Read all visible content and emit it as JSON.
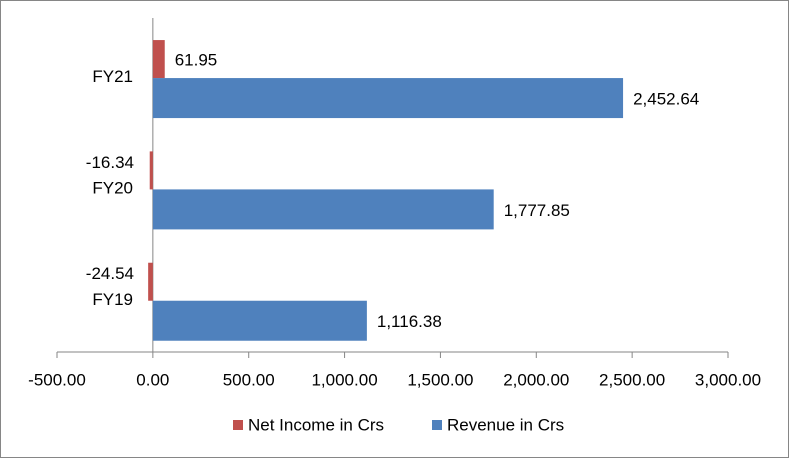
{
  "chart_data": {
    "type": "hbar",
    "categories": [
      "FY19",
      "FY20",
      "FY21"
    ],
    "series": [
      {
        "name": "Net Income in Crs",
        "color": "#c0504d",
        "values": [
          -24.54,
          -16.34,
          61.95
        ]
      },
      {
        "name": "Revenue in Crs",
        "color": "#4f81bd",
        "values": [
          1116.38,
          1777.85,
          2452.64
        ],
        "value_labels": [
          "1,116.38",
          "1,777.85",
          "2,452.64"
        ]
      }
    ],
    "xlim": [
      -500,
      3000
    ],
    "xticks": [
      {
        "value": -500,
        "label": "-500.00"
      },
      {
        "value": 0,
        "label": "0.00"
      },
      {
        "value": 500,
        "label": "500.00"
      },
      {
        "value": 1000,
        "label": "1,000.00"
      },
      {
        "value": 1500,
        "label": "1,500.00"
      },
      {
        "value": 2000,
        "label": "2,000.00"
      },
      {
        "value": 2500,
        "label": "2,500.00"
      },
      {
        "value": 3000,
        "label": "3,000.00"
      }
    ],
    "legend": "bottom"
  }
}
